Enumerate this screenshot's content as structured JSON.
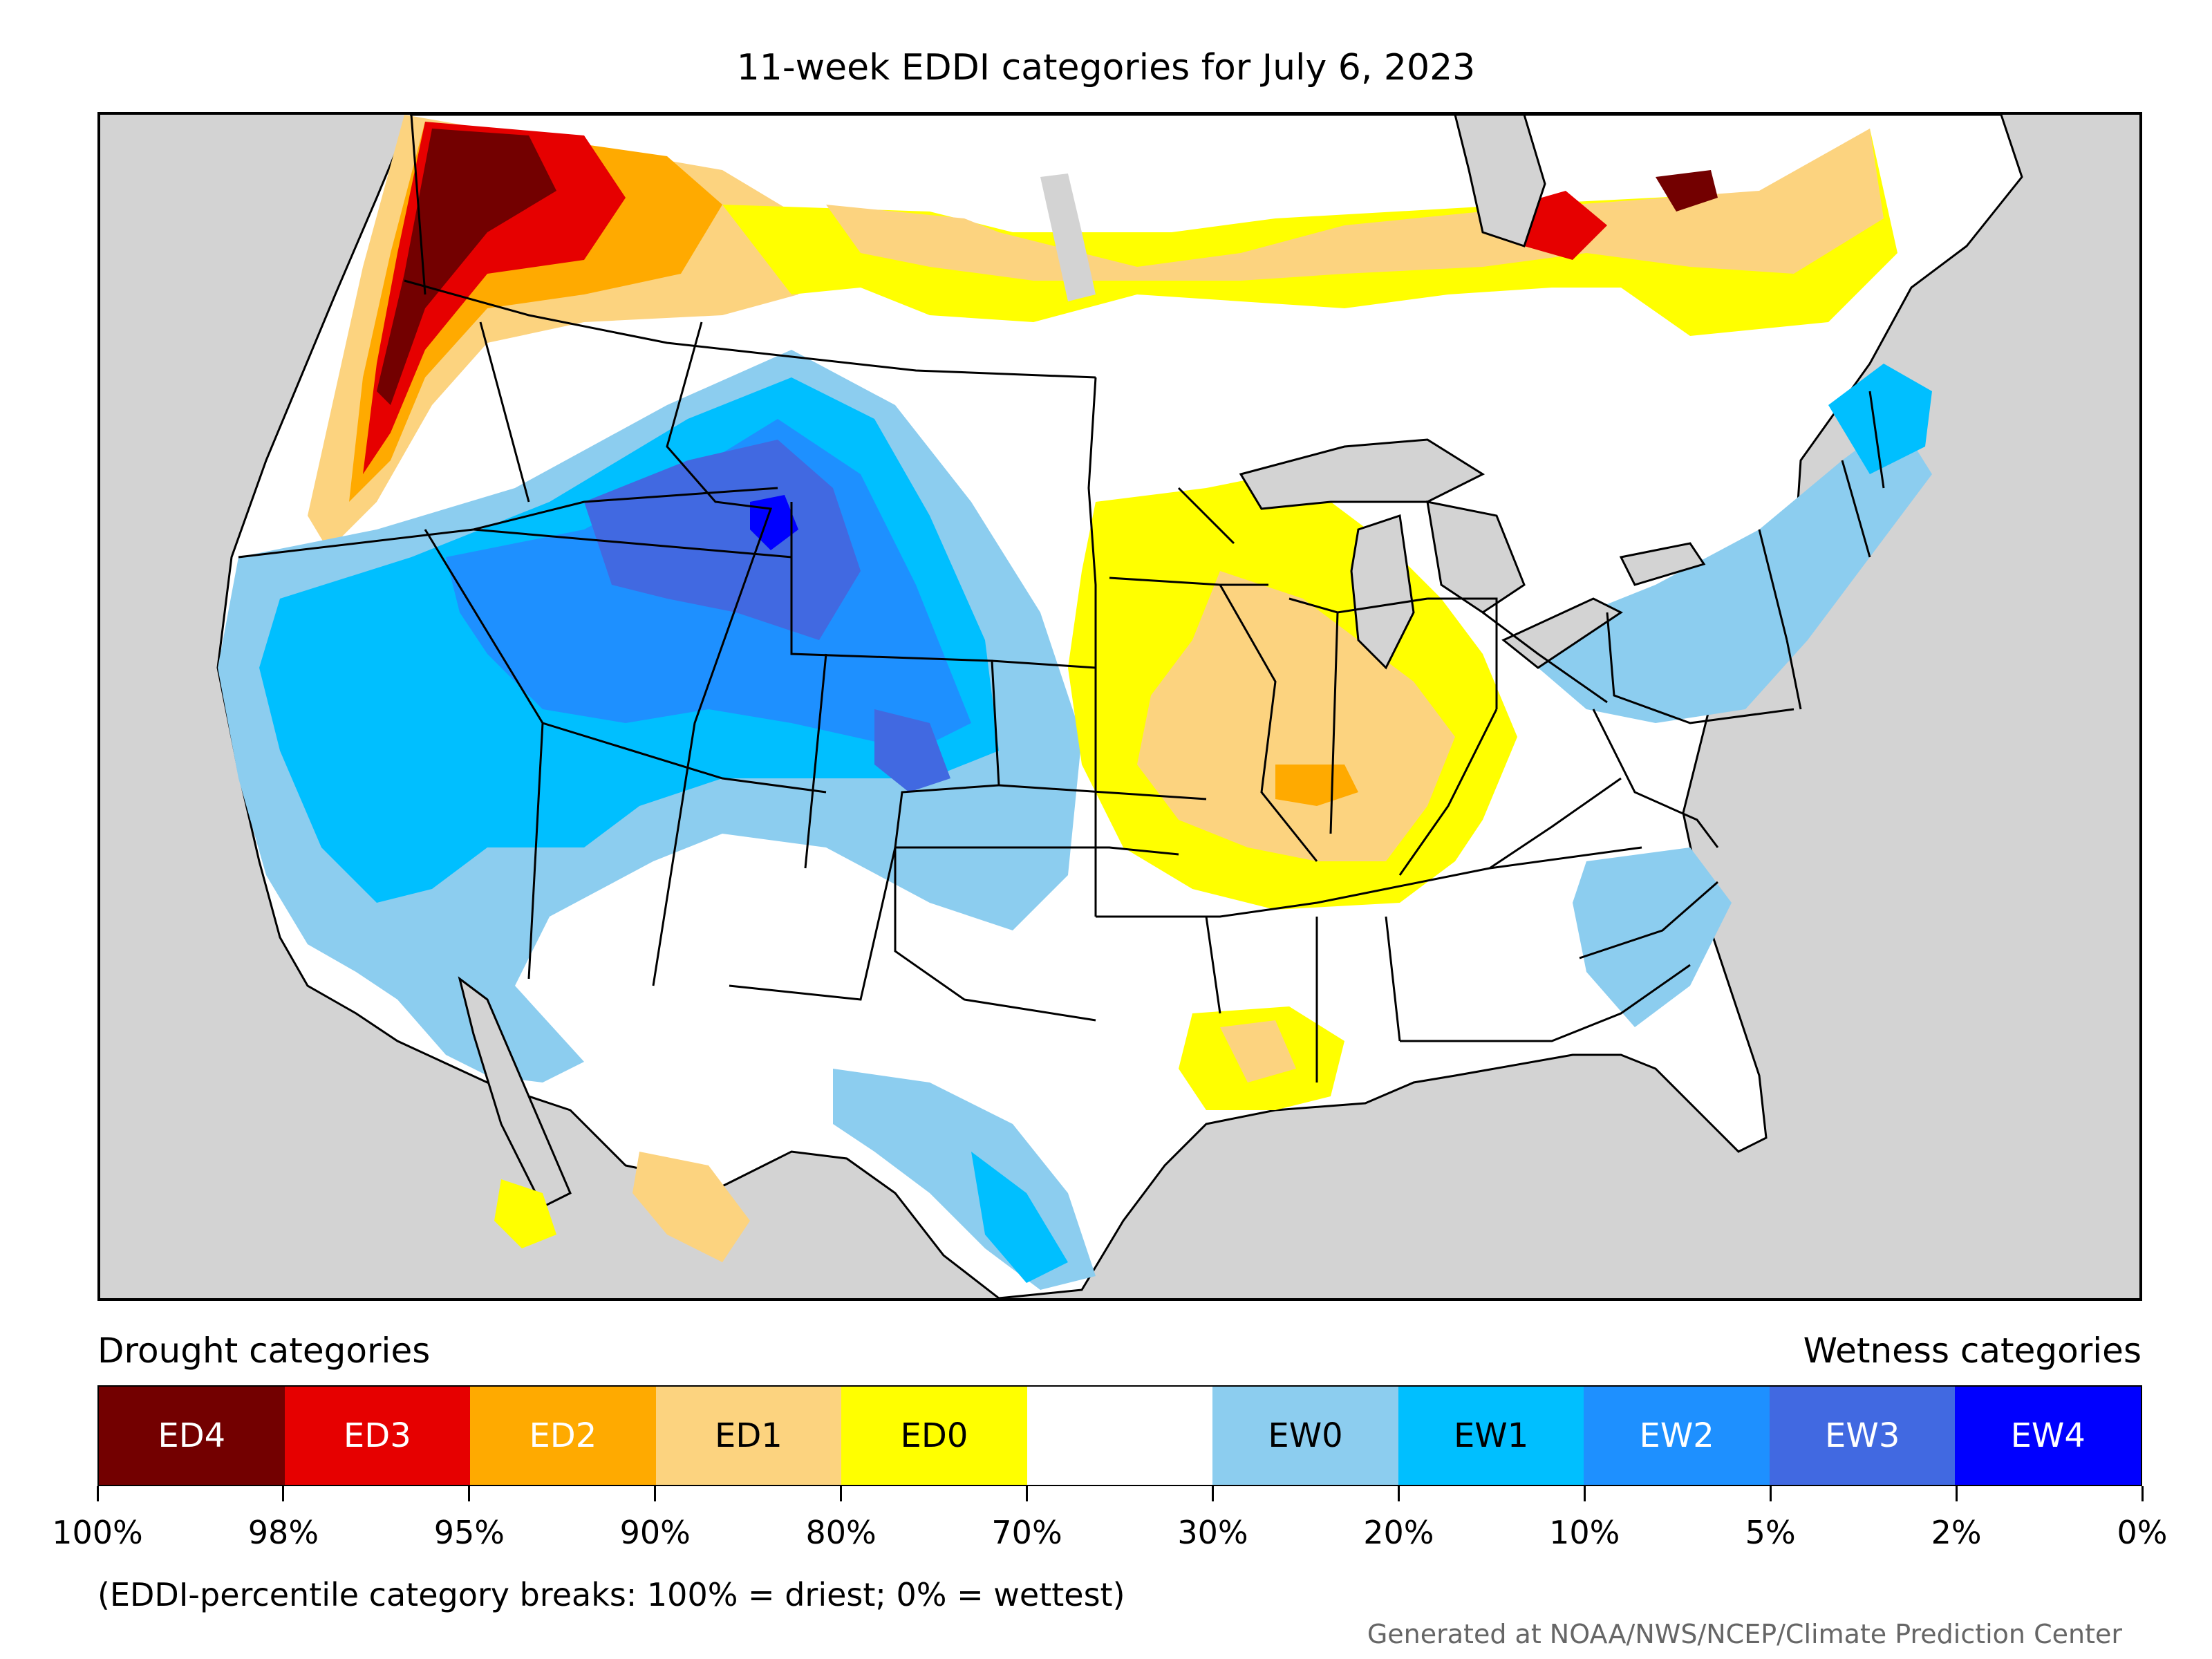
{
  "title": "11-week EDDI categories for July 6, 2023",
  "legend": {
    "left_heading": "Drought categories",
    "right_heading": "Wetness categories",
    "categories": [
      {
        "label": "ED4",
        "color": "#730000",
        "text_color": "#ffffff"
      },
      {
        "label": "ED3",
        "color": "#e60000",
        "text_color": "#ffffff"
      },
      {
        "label": "ED2",
        "color": "#ffaa00",
        "text_color": "#ffffff"
      },
      {
        "label": "ED1",
        "color": "#fcd37f",
        "text_color": "#000000"
      },
      {
        "label": "ED0",
        "color": "#ffff00",
        "text_color": "#000000"
      },
      {
        "label": "",
        "color": "#ffffff",
        "text_color": "#000000"
      },
      {
        "label": "EW0",
        "color": "#8ccdef",
        "text_color": "#000000"
      },
      {
        "label": "EW1",
        "color": "#00bfff",
        "text_color": "#000000"
      },
      {
        "label": "EW2",
        "color": "#1e90ff",
        "text_color": "#ffffff"
      },
      {
        "label": "EW3",
        "color": "#4169e1",
        "text_color": "#ffffff"
      },
      {
        "label": "EW4",
        "color": "#0000ff",
        "text_color": "#ffffff"
      }
    ],
    "breaks": [
      "100%",
      "98%",
      "95%",
      "90%",
      "80%",
      "70%",
      "30%",
      "20%",
      "10%",
      "5%",
      "2%",
      "0%"
    ]
  },
  "note": "(EDDI-percentile category breaks: 100% = driest; 0% = wettest)",
  "credit": "Generated at NOAA/NWS/NCEP/Climate Prediction Center",
  "map": {
    "background_color": "#d3d3d3",
    "land_color": "#ffffff"
  }
}
